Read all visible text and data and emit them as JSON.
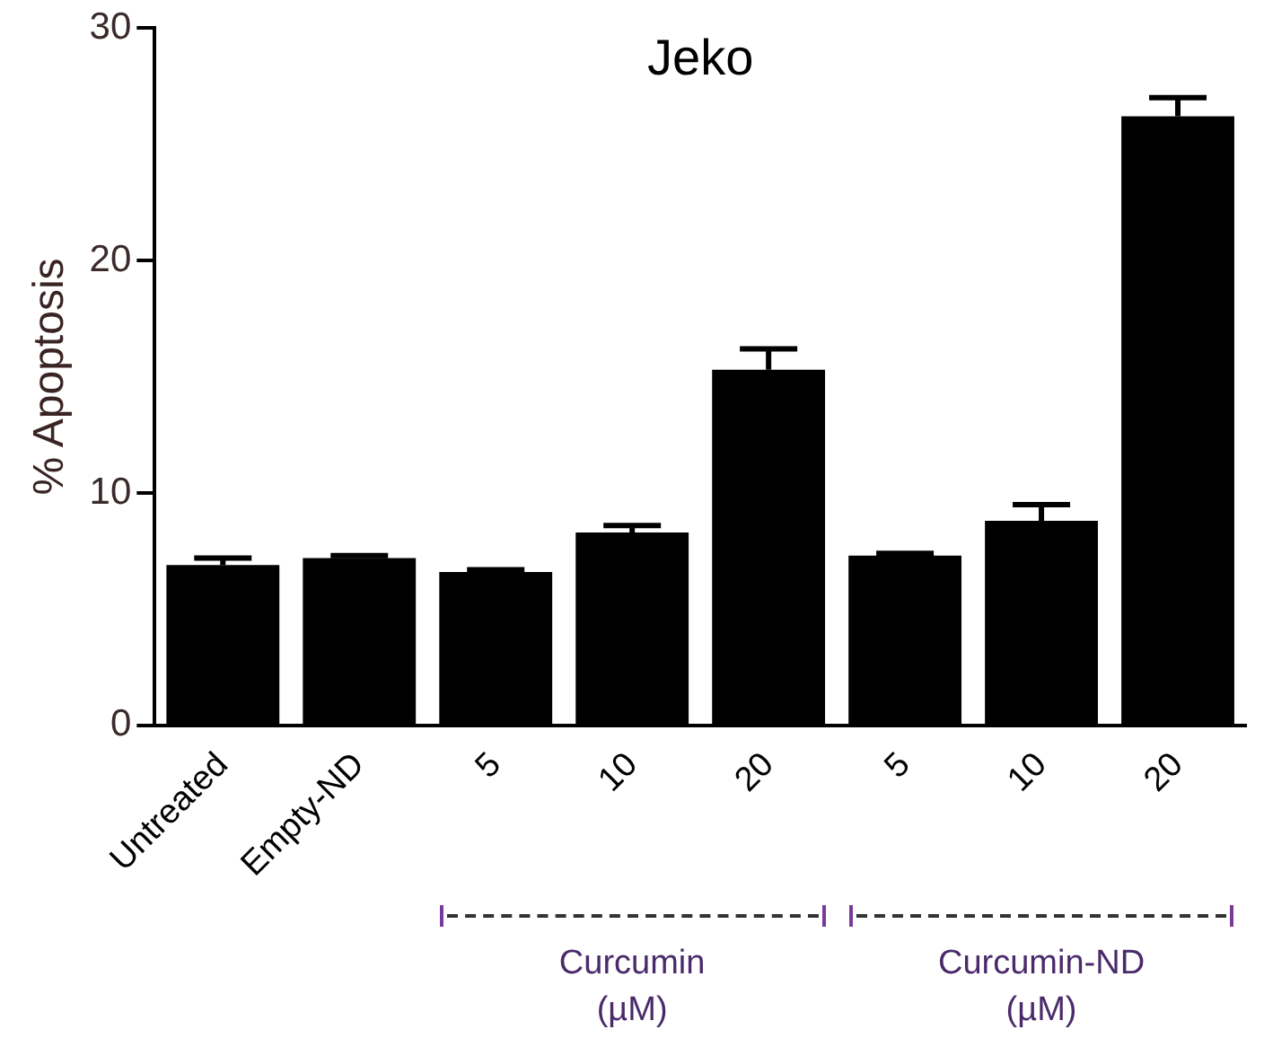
{
  "chart_data": {
    "type": "bar",
    "title": "Jeko",
    "ylabel": "% Apoptosis",
    "categories": [
      "Untreated",
      "Empty-ND",
      "5",
      "10",
      "20",
      "5",
      "10",
      "20"
    ],
    "values": [
      6.9,
      7.2,
      6.6,
      8.3,
      15.3,
      7.3,
      8.8,
      26.2
    ],
    "errors": [
      0.3,
      0.1,
      0.1,
      0.3,
      0.9,
      0.1,
      0.7,
      0.8
    ],
    "color": "#000000",
    "ylim": [
      0,
      30
    ],
    "yticks": [
      0,
      10,
      20,
      30
    ],
    "grid": false,
    "legend": false,
    "annotations": [
      "Curcumin\n(µM)",
      "Curcumin-ND\n(µM)"
    ]
  }
}
